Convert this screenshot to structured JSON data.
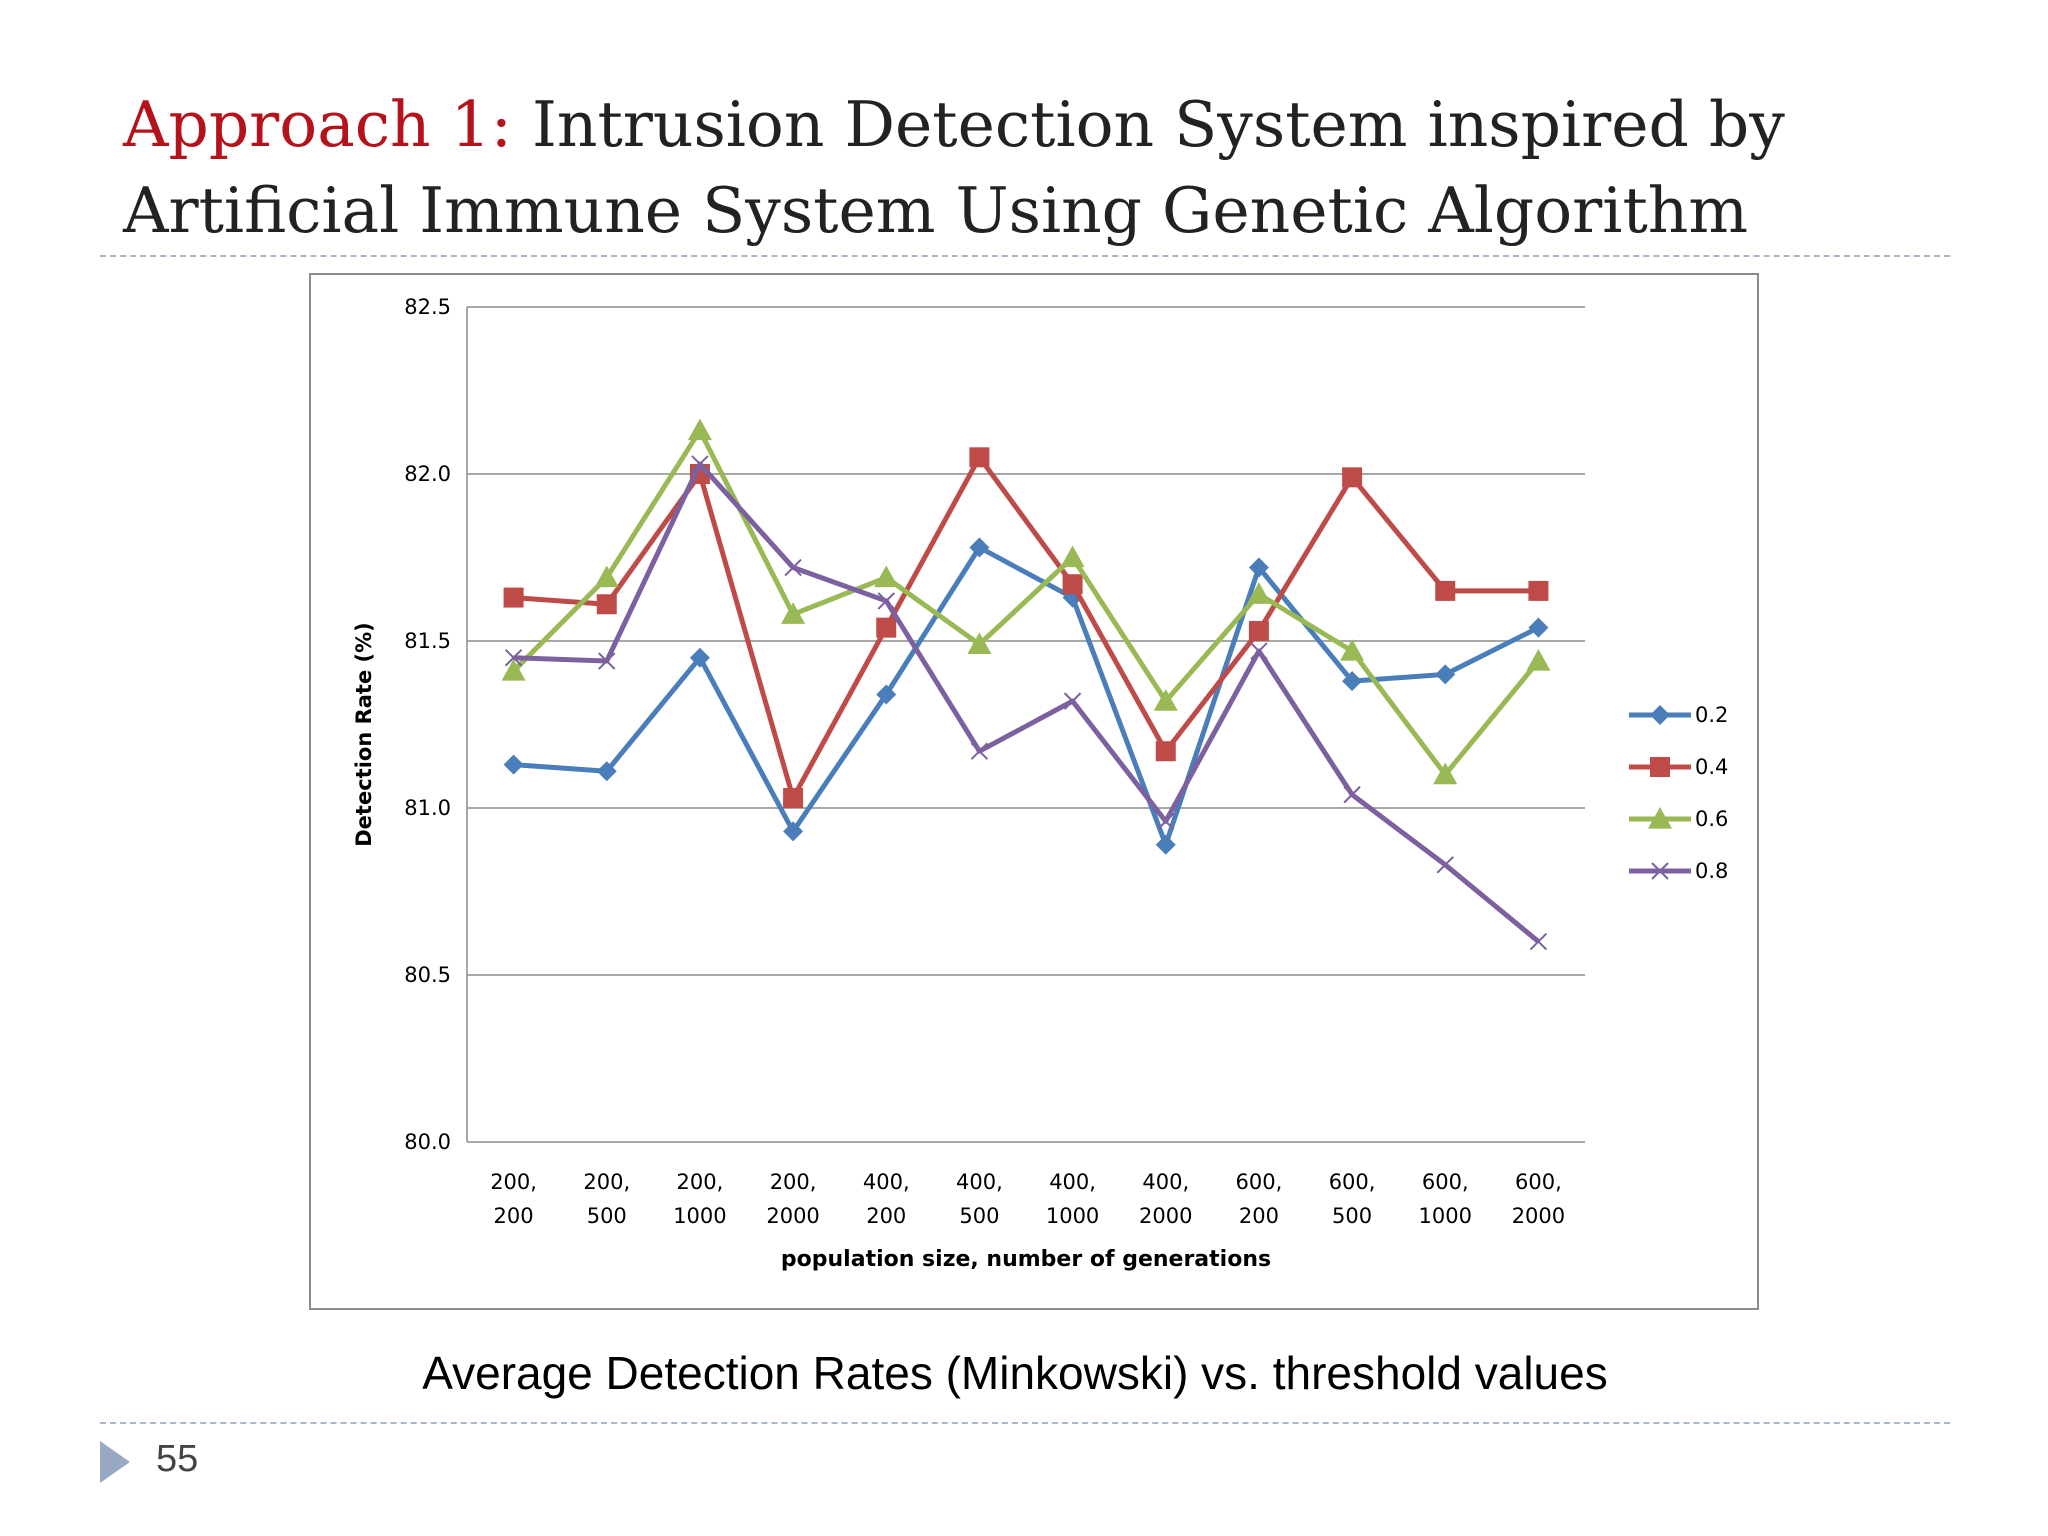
{
  "slide": {
    "title_accent": "Approach 1:",
    "title_rest": " Intrusion Detection System inspired by Artificial Immune System Using Genetic Algorithm",
    "caption": "Average Detection Rates (Minkowski) vs. threshold values",
    "page_number": "55",
    "colors": {
      "accent": "#b5121b",
      "rule": "#aab7c8",
      "arrow": "#97a9c4"
    }
  },
  "chart_data": {
    "type": "line",
    "title": "",
    "xlabel": "population size, number of generations",
    "ylabel": "Detection Rate (%)",
    "ylim": [
      80.0,
      82.5
    ],
    "yticks": [
      "80.0",
      "80.5",
      "81.0",
      "81.5",
      "82.0",
      "82.5"
    ],
    "grid": "horizontal",
    "legend_position": "right",
    "categories": [
      [
        "200,",
        "200"
      ],
      [
        "200,",
        "500"
      ],
      [
        "200,",
        "1000"
      ],
      [
        "200,",
        "2000"
      ],
      [
        "400,",
        "200"
      ],
      [
        "400,",
        "500"
      ],
      [
        "400,",
        "1000"
      ],
      [
        "400,",
        "2000"
      ],
      [
        "600,",
        "200"
      ],
      [
        "600,",
        "500"
      ],
      [
        "600,",
        "1000"
      ],
      [
        "600,",
        "2000"
      ]
    ],
    "series": [
      {
        "name": "0.2",
        "color": "#4a7ebb",
        "marker": "diamond",
        "values": [
          81.13,
          81.11,
          81.45,
          80.93,
          81.34,
          81.78,
          81.63,
          80.89,
          81.72,
          81.38,
          81.4,
          81.54
        ]
      },
      {
        "name": "0.4",
        "color": "#be4b48",
        "marker": "square",
        "values": [
          81.63,
          81.61,
          82.0,
          81.03,
          81.54,
          82.05,
          81.67,
          81.17,
          81.53,
          81.99,
          81.65,
          81.65
        ]
      },
      {
        "name": "0.6",
        "color": "#98b954",
        "marker": "triangle",
        "values": [
          81.41,
          81.69,
          82.13,
          81.58,
          81.69,
          81.49,
          81.75,
          81.32,
          81.64,
          81.47,
          81.1,
          81.44
        ]
      },
      {
        "name": "0.8",
        "color": "#7d60a0",
        "marker": "x",
        "values": [
          81.45,
          81.44,
          82.03,
          81.72,
          81.62,
          81.17,
          81.32,
          80.96,
          81.47,
          81.04,
          80.83,
          80.6
        ]
      }
    ]
  }
}
